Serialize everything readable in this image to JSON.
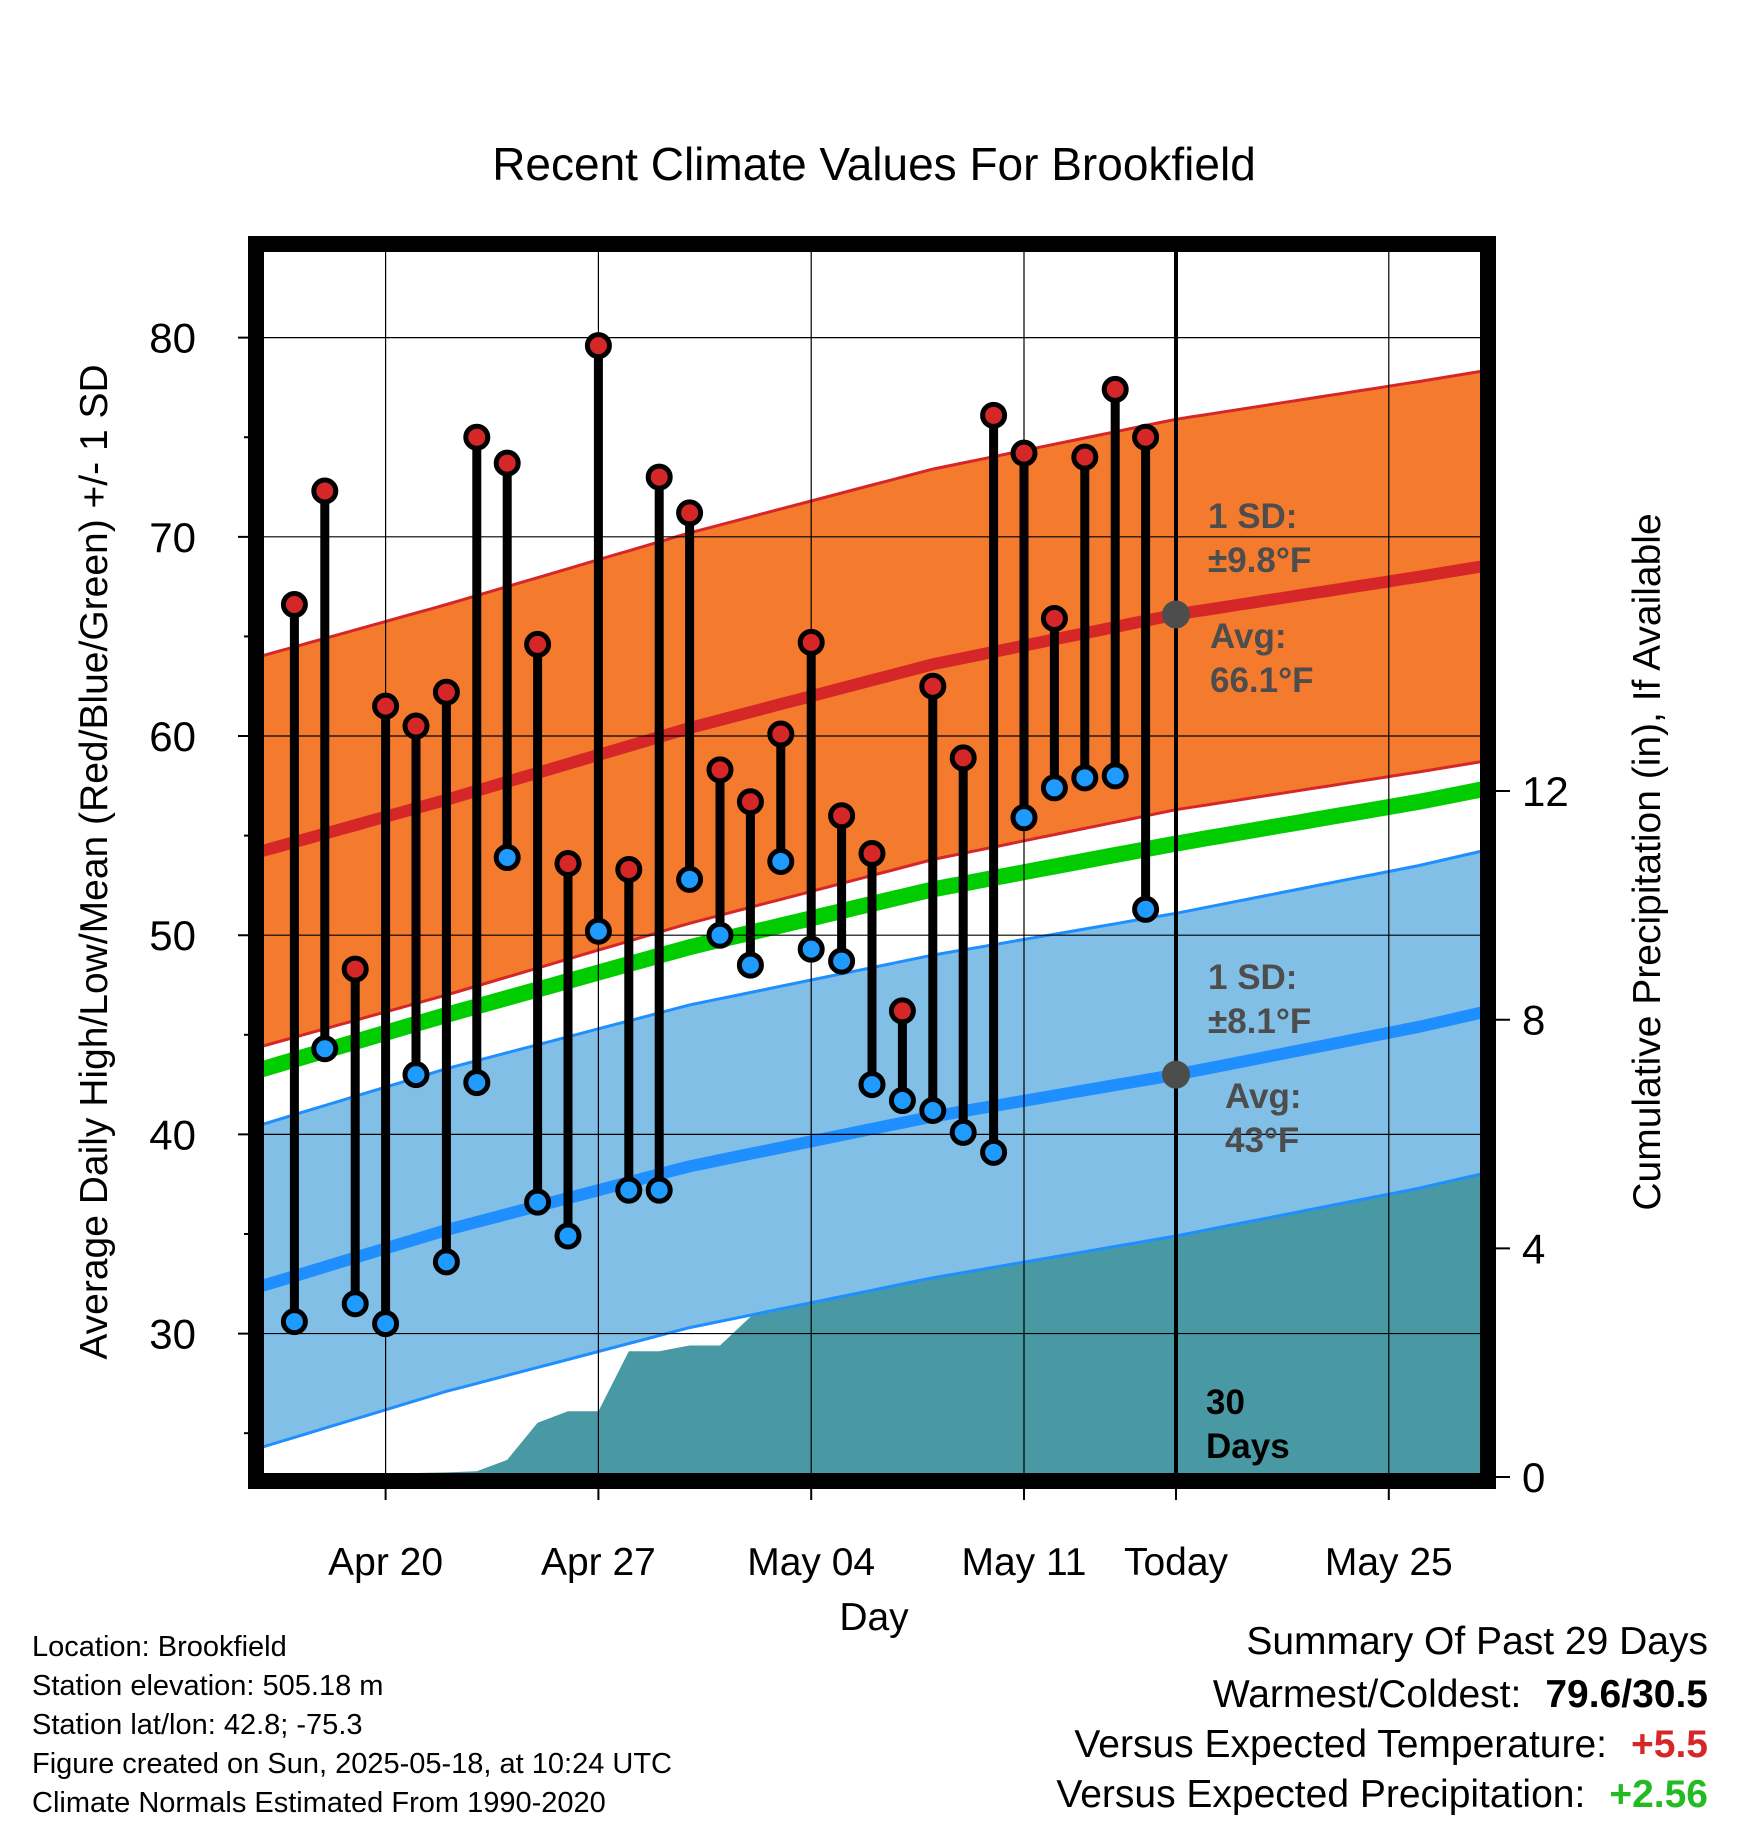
{
  "chart_data": {
    "type": "line",
    "title": "Recent Climate Values For Brookfield",
    "xlabel": "Day",
    "ylabel_left": "Average Daily High/Low/Mean (Red/Blue/Green) +/- 1 SD",
    "ylabel_right": "Cumulative Precipitation (in), If Available",
    "x_tick_labels": [
      "Apr 20",
      "Apr 27",
      "May 04",
      "May 11",
      "Today",
      "May 25"
    ],
    "ylim_left": [
      22.8,
      84.5
    ],
    "y_ticks_left": [
      30,
      40,
      50,
      60,
      70,
      80
    ],
    "ylim_right": [
      0,
      21.5
    ],
    "y_ticks_right": [
      0,
      4,
      8,
      12
    ],
    "grid": true,
    "day_range": [
      -30,
      10
    ],
    "days": [
      -29,
      -28,
      -27,
      -26,
      -25,
      -24,
      -23,
      -22,
      -21,
      -20,
      -19,
      -18,
      -17,
      -16,
      -15,
      -14,
      -13,
      -12,
      -11,
      -10,
      -9,
      -8,
      -7,
      -6,
      -5,
      -4,
      -3,
      -2,
      -1
    ],
    "daily_high": [
      66.6,
      72.3,
      48.3,
      61.5,
      60.5,
      62.2,
      75.0,
      73.7,
      64.6,
      53.6,
      79.6,
      53.3,
      73.0,
      71.2,
      58.3,
      56.7,
      60.1,
      64.7,
      56.0,
      54.1,
      46.2,
      62.5,
      58.9,
      76.1,
      74.2,
      65.9,
      74.0,
      77.4,
      75.0
    ],
    "daily_low": [
      30.6,
      44.3,
      31.5,
      30.5,
      43.0,
      33.6,
      42.6,
      53.9,
      36.6,
      34.9,
      50.2,
      37.2,
      37.2,
      52.8,
      50.0,
      48.5,
      53.7,
      49.3,
      48.7,
      42.5,
      41.7,
      41.2,
      40.1,
      39.1,
      55.9,
      57.4,
      57.9,
      58.0,
      51.3
    ],
    "normal_days": [
      -32,
      -24,
      -16,
      -8,
      0,
      8,
      10
    ],
    "normal_high_avg": [
      53.4,
      56.8,
      60.4,
      63.6,
      66.1,
      68.0,
      68.5
    ],
    "normal_low_avg": [
      31.5,
      35.2,
      38.4,
      40.9,
      43.0,
      45.4,
      46.1
    ],
    "normal_mean_avg": [
      42.4,
      46.0,
      49.4,
      52.3,
      54.6,
      56.7,
      57.3
    ],
    "high_sd": 9.8,
    "low_sd": 8.1,
    "precip_days": [
      -30,
      -27,
      -26,
      -25,
      -24,
      -23,
      -22,
      -21,
      -20,
      -19,
      -18,
      -17,
      -16,
      -15,
      -14,
      -13,
      -12,
      -11,
      -10,
      -9,
      -8,
      -7,
      -6,
      -5,
      -4,
      -3,
      -2,
      -1,
      0,
      10
    ],
    "precip_cumulative": [
      0.0,
      0.05,
      0.07,
      0.07,
      0.08,
      0.1,
      0.3,
      0.95,
      1.15,
      1.15,
      2.2,
      2.2,
      2.3,
      2.3,
      2.8,
      3.2,
      3.4,
      4.3,
      4.75,
      4.75,
      5.65,
      5.8,
      5.8,
      5.8,
      5.8,
      5.85,
      6.05,
      6.15,
      6.3,
      6.3
    ],
    "annotations": {
      "high_sd_label": "1 SD:",
      "high_sd_value": "±9.8°F",
      "high_avg_label": "Avg:",
      "high_avg_value": "66.1°F",
      "low_sd_label": "1 SD:",
      "low_sd_value": "±8.1°F",
      "low_avg_label": "Avg:",
      "low_avg_value": "43°F",
      "days_number": "30",
      "days_word": "Days"
    },
    "colors": {
      "high_band": "#f47a2d",
      "high_line": "#d62728",
      "low_band": "#82bfe6",
      "low_line": "#1f8fff",
      "mean_line": "#00cc00",
      "precip": "#4899a3",
      "high_marker": "#d62728",
      "low_marker": "#1f9bff",
      "annotation": "#4d4d4d"
    }
  },
  "footer": {
    "location": "Location: Brookfield",
    "elevation": "Station elevation: 505.18 m",
    "latlon": "Station lat/lon: 42.8; -75.3",
    "created": "Figure created on Sun, 2025-05-18, at 10:24 UTC",
    "normals": "Climate Normals Estimated From 1990-2020"
  },
  "summary": {
    "title": "Summary Of Past 29 Days",
    "warmest_label": "Warmest/Coldest:",
    "warmest_value": "79.6/30.5",
    "temp_label": "Versus Expected Temperature:",
    "temp_value": "+5.5",
    "temp_color": "#d62728",
    "precip_label": "Versus Expected Precipitation:",
    "precip_value": "+2.56",
    "precip_color": "#22bb22"
  }
}
